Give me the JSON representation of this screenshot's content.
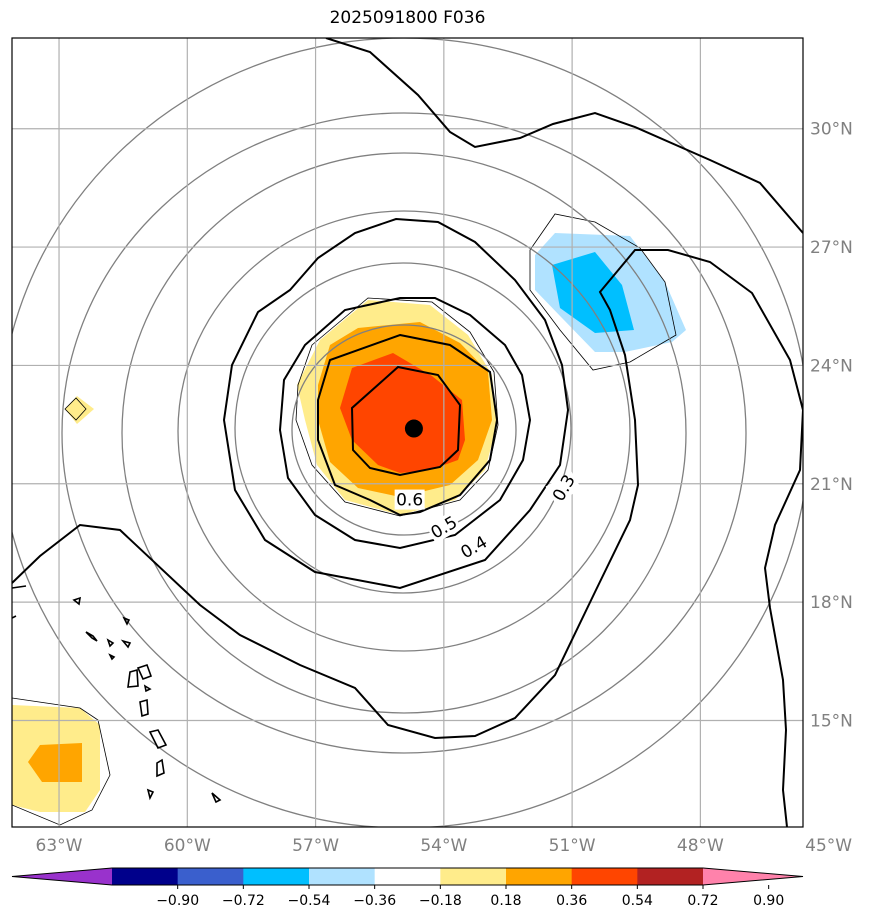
{
  "title": "2025091800 F036",
  "map": {
    "lon_range": [
      -64.1,
      -45.6
    ],
    "lat_range": [
      12.3,
      32.3
    ],
    "lon_ticks": [
      {
        "value": -63,
        "label": "63°W"
      },
      {
        "value": -60,
        "label": "60°W"
      },
      {
        "value": -57,
        "label": "57°W"
      },
      {
        "value": -54,
        "label": "54°W"
      },
      {
        "value": -51,
        "label": "51°W"
      },
      {
        "value": -48,
        "label": "48°W"
      },
      {
        "value": -45,
        "label": "45°W"
      }
    ],
    "lat_ticks": [
      {
        "value": 30,
        "label": "30°N"
      },
      {
        "value": 27,
        "label": "27°N"
      },
      {
        "value": 24,
        "label": "24°N"
      },
      {
        "value": 21,
        "label": "21°N"
      },
      {
        "value": 18,
        "label": "18°N"
      },
      {
        "value": 15,
        "label": "15°N"
      }
    ],
    "storm_center": {
      "lon": -54.7,
      "lat": 22.4
    },
    "contour_labels": [
      {
        "text": "0.6",
        "lon": -54.8,
        "lat": 20.6
      },
      {
        "text": "0.5",
        "lon": -54.0,
        "lat": 19.9
      },
      {
        "text": "0.4",
        "lon": -53.3,
        "lat": 19.4
      },
      {
        "text": "0.3",
        "lon": -51.2,
        "lat": 20.9
      }
    ]
  },
  "colorbar": {
    "colors": [
      "#9932cc",
      "#00008b",
      "#3a5fcd",
      "#00bfff",
      "#b0e2ff",
      "#ffffff",
      "#ffec8b",
      "#ffa500",
      "#ff4500",
      "#b22222",
      "#ff82ab"
    ],
    "labels": [
      "−0.90",
      "−0.72",
      "−0.54",
      "−0.36",
      "−0.18",
      "0.18",
      "0.36",
      "0.54",
      "0.72",
      "0.90"
    ]
  }
}
